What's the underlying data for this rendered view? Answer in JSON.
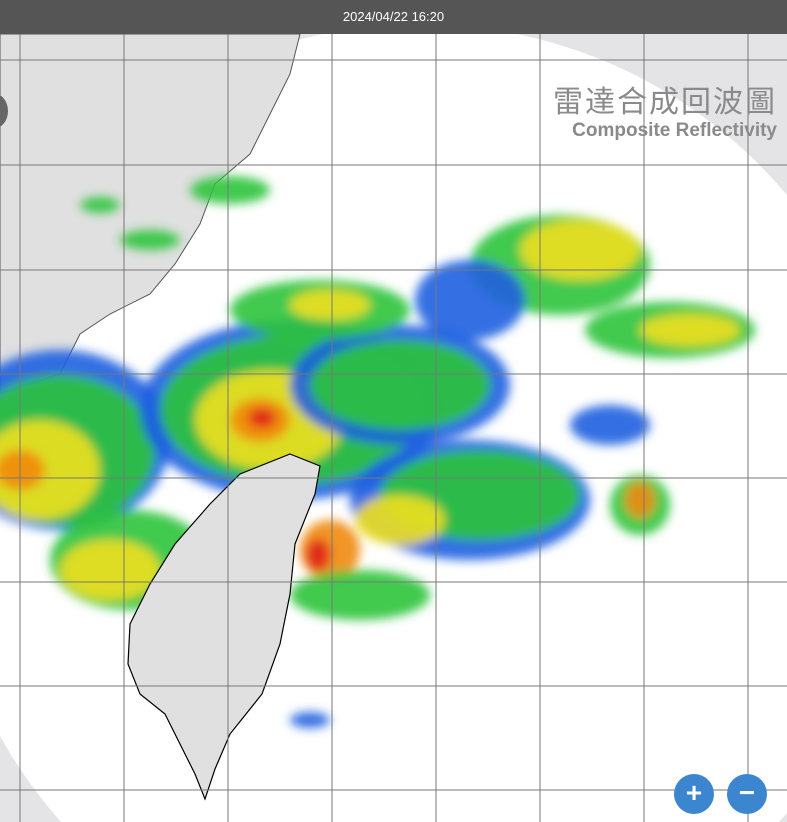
{
  "header": {
    "timestamp": "2024/04/22 16:20"
  },
  "map": {
    "title_zh": "雷達合成回波圖",
    "title_en": "Composite Reflectivity",
    "layer": "radar-composite-reflectivity",
    "colors": {
      "weak": "#1e5fe0",
      "light": "#2cc43a",
      "moderate": "#f0e020",
      "heavy": "#f08a10",
      "intense": "#e02018",
      "land": "#e0e0e0",
      "outside_coverage": "#e4e4e6"
    }
  },
  "controls": {
    "zoom_in_label": "+",
    "zoom_out_label": "−",
    "zoom_in_icon": "plus-icon",
    "zoom_out_icon": "minus-icon"
  }
}
